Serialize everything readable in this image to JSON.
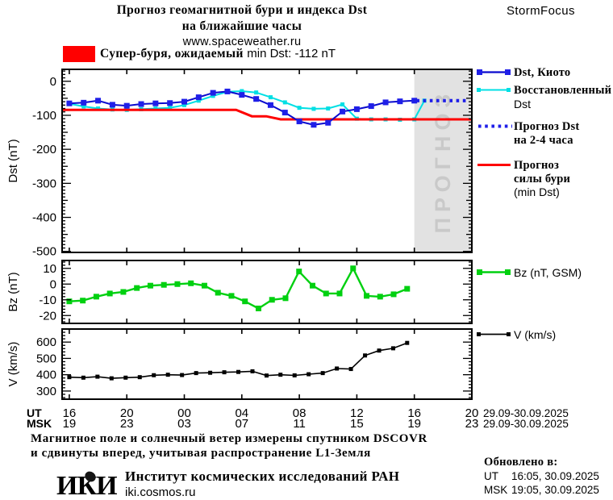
{
  "header": {
    "title_line1": "Прогноз геомагнитной бури и индекса Dst",
    "title_line2": "на ближайшие часы",
    "website": "www.spaceweather.ru",
    "brand": "StormFocus"
  },
  "alert": {
    "swatch_color": "#ff0000",
    "text_ru": "Супер-буря, ожидаемый",
    "text_en": "min Dst: -112 nT"
  },
  "legend": {
    "item1": "Dst, Киото",
    "item2_line1": "Восстановленный",
    "item2_line2": "Dst",
    "item3_line1": "Прогноз Dst",
    "item3_line2": "на 2-4 часа",
    "item4_line1": "Прогноз",
    "item4_line2": "силы бури",
    "item4_line3": "(min Dst)",
    "item5": "Bz (nT, GSM)",
    "item6": "V (km/s)"
  },
  "xaxis": {
    "ut_label": "UT",
    "msk_label": "MSK",
    "ut_ticks": [
      "16",
      "20",
      "00",
      "04",
      "08",
      "12",
      "16",
      "20"
    ],
    "msk_ticks": [
      "19",
      "23",
      "03",
      "07",
      "11",
      "15",
      "19",
      "23"
    ],
    "ut_date": "29.09-30.09.2025",
    "msk_date": "29.09-30.09.2025"
  },
  "footnotes": {
    "line1": "Магнитное поле и солнечный ветер измерены спутником DSCOVR",
    "line2": "и сдвинуты вперед, учитывая распространение L1-Земля"
  },
  "institute": {
    "logo": "ИКИ",
    "name": "Институт космических исследований РАН",
    "site": "iki.cosmos.ru"
  },
  "updated": {
    "heading": "Обновлено в:",
    "ut_label": "UT",
    "ut_time": "16:05, 30.09.2025",
    "msk_label": "MSK",
    "msk_time": "19:05, 30.09.2025"
  },
  "colors": {
    "forecast_region_bg": "#e2e2e2",
    "watermark": "#c9c9c9",
    "frame": "#000000"
  },
  "chart_data": [
    {
      "type": "line",
      "title": "Прогноз геомагнитной бури и индекса Dst на ближайшие часы",
      "ylabel": "Dst (nT)",
      "ylim": [
        35,
        -503
      ],
      "yticks": [
        0,
        -100,
        -200,
        -300,
        -400,
        -500
      ],
      "xlim_hours_from_16UT": [
        -0.5,
        28
      ],
      "xticks_hours": [
        0,
        4,
        8,
        12,
        16,
        20,
        24,
        28
      ],
      "xtick_labels_ut": [
        "16",
        "20",
        "00",
        "04",
        "08",
        "12",
        "16",
        "20"
      ],
      "xtick_labels_msk": [
        "19",
        "23",
        "03",
        "07",
        "11",
        "15",
        "19",
        "23"
      ],
      "forecast_region": {
        "start_hour": 24,
        "end_hour": 28,
        "watermark": "ПРОГНОЗ"
      },
      "series": [
        {
          "name": "Восстановленный Dst",
          "color": "#00dfe4",
          "width": 2,
          "marker": 5,
          "x": [
            0,
            1,
            2,
            3,
            4,
            5,
            6,
            7,
            8,
            9,
            10,
            11,
            12,
            13,
            14,
            15,
            16,
            17,
            18,
            19,
            20,
            21,
            22,
            23,
            24,
            24.7
          ],
          "y": [
            -66,
            -74,
            -80,
            -83,
            -84,
            -82,
            -80,
            -78,
            -70,
            -57,
            -43,
            -31,
            -29,
            -33,
            -47,
            -62,
            -78,
            -81,
            -80,
            -68,
            -110,
            -112,
            -112,
            -113,
            -112,
            -57
          ]
        },
        {
          "name": "Прогноз силы бури (min Dst)",
          "color": "#fe0000",
          "width": 3,
          "marker": 0,
          "x": [
            -0.5,
            11.6,
            12.7,
            13.7,
            14.7,
            28
          ],
          "y": [
            -84,
            -84,
            -103,
            -103,
            -112,
            -112
          ]
        },
        {
          "name": "Dst, Киото",
          "color": "#0a0ace",
          "marker_color": "#1f1fe8",
          "width": 2,
          "marker": 7,
          "x": [
            0,
            1,
            2,
            3,
            4,
            5,
            6,
            7,
            8,
            9,
            10,
            11,
            12,
            13,
            14,
            15,
            16,
            17,
            18,
            19,
            20,
            21,
            22,
            23,
            24
          ],
          "y": [
            -65,
            -63,
            -57,
            -69,
            -72,
            -67,
            -65,
            -64,
            -60,
            -47,
            -34,
            -30,
            -40,
            -52,
            -70,
            -92,
            -118,
            -128,
            -122,
            -89,
            -82,
            -73,
            -62,
            -59,
            -57
          ]
        },
        {
          "name": "Прогноз Dst на 2-4 часа",
          "color": "#1f1fe8",
          "width": 4.2,
          "marker": 0,
          "dash": "3.6 4.6",
          "x": [
            24.15,
            27.75
          ],
          "y": [
            -57,
            -57
          ]
        }
      ]
    },
    {
      "type": "line",
      "ylabel": "Bz (nT)",
      "ylim": [
        15,
        -25
      ],
      "yticks": [
        10,
        0,
        -10,
        -20
      ],
      "series": [
        {
          "name": "Bz (nT, GSM)",
          "color": "#00d010",
          "width": 2.4,
          "marker": 7,
          "x": [
            0,
            0.94,
            1.88,
            2.82,
            3.76,
            4.7,
            5.64,
            6.58,
            7.52,
            8.46,
            9.4,
            10.34,
            11.28,
            12.22,
            13.16,
            14.1,
            15.04,
            15.98,
            16.92,
            17.86,
            18.8,
            19.74,
            20.68,
            21.62,
            22.56,
            23.5
          ],
          "y": [
            -11,
            -10.5,
            -8,
            -6,
            -5,
            -2.5,
            -1,
            -0.5,
            0,
            0.5,
            -1,
            -5.5,
            -7.5,
            -11,
            -15.5,
            -10,
            -9,
            8,
            -1,
            -6,
            -6,
            10,
            -7.5,
            -8,
            -6.5,
            -3
          ]
        }
      ]
    },
    {
      "type": "line",
      "ylabel": "V (km/s)",
      "ylim": [
        680,
        250
      ],
      "yticks": [
        300,
        400,
        500,
        600
      ],
      "series": [
        {
          "name": "V (km/s)",
          "color": "#000000",
          "width": 1.6,
          "marker": 5,
          "x": [
            0,
            0.98,
            1.96,
            2.94,
            3.92,
            4.9,
            5.88,
            6.86,
            7.84,
            8.82,
            9.8,
            10.78,
            11.76,
            12.74,
            13.72,
            14.69,
            15.67,
            16.65,
            17.63,
            18.61,
            19.59,
            20.57,
            21.55,
            22.53,
            23.5
          ],
          "y": [
            385,
            382,
            388,
            378,
            382,
            385,
            397,
            400,
            398,
            410,
            412,
            415,
            417,
            421,
            395,
            400,
            396,
            403,
            410,
            438,
            435,
            518,
            548,
            562,
            595
          ]
        }
      ]
    }
  ]
}
